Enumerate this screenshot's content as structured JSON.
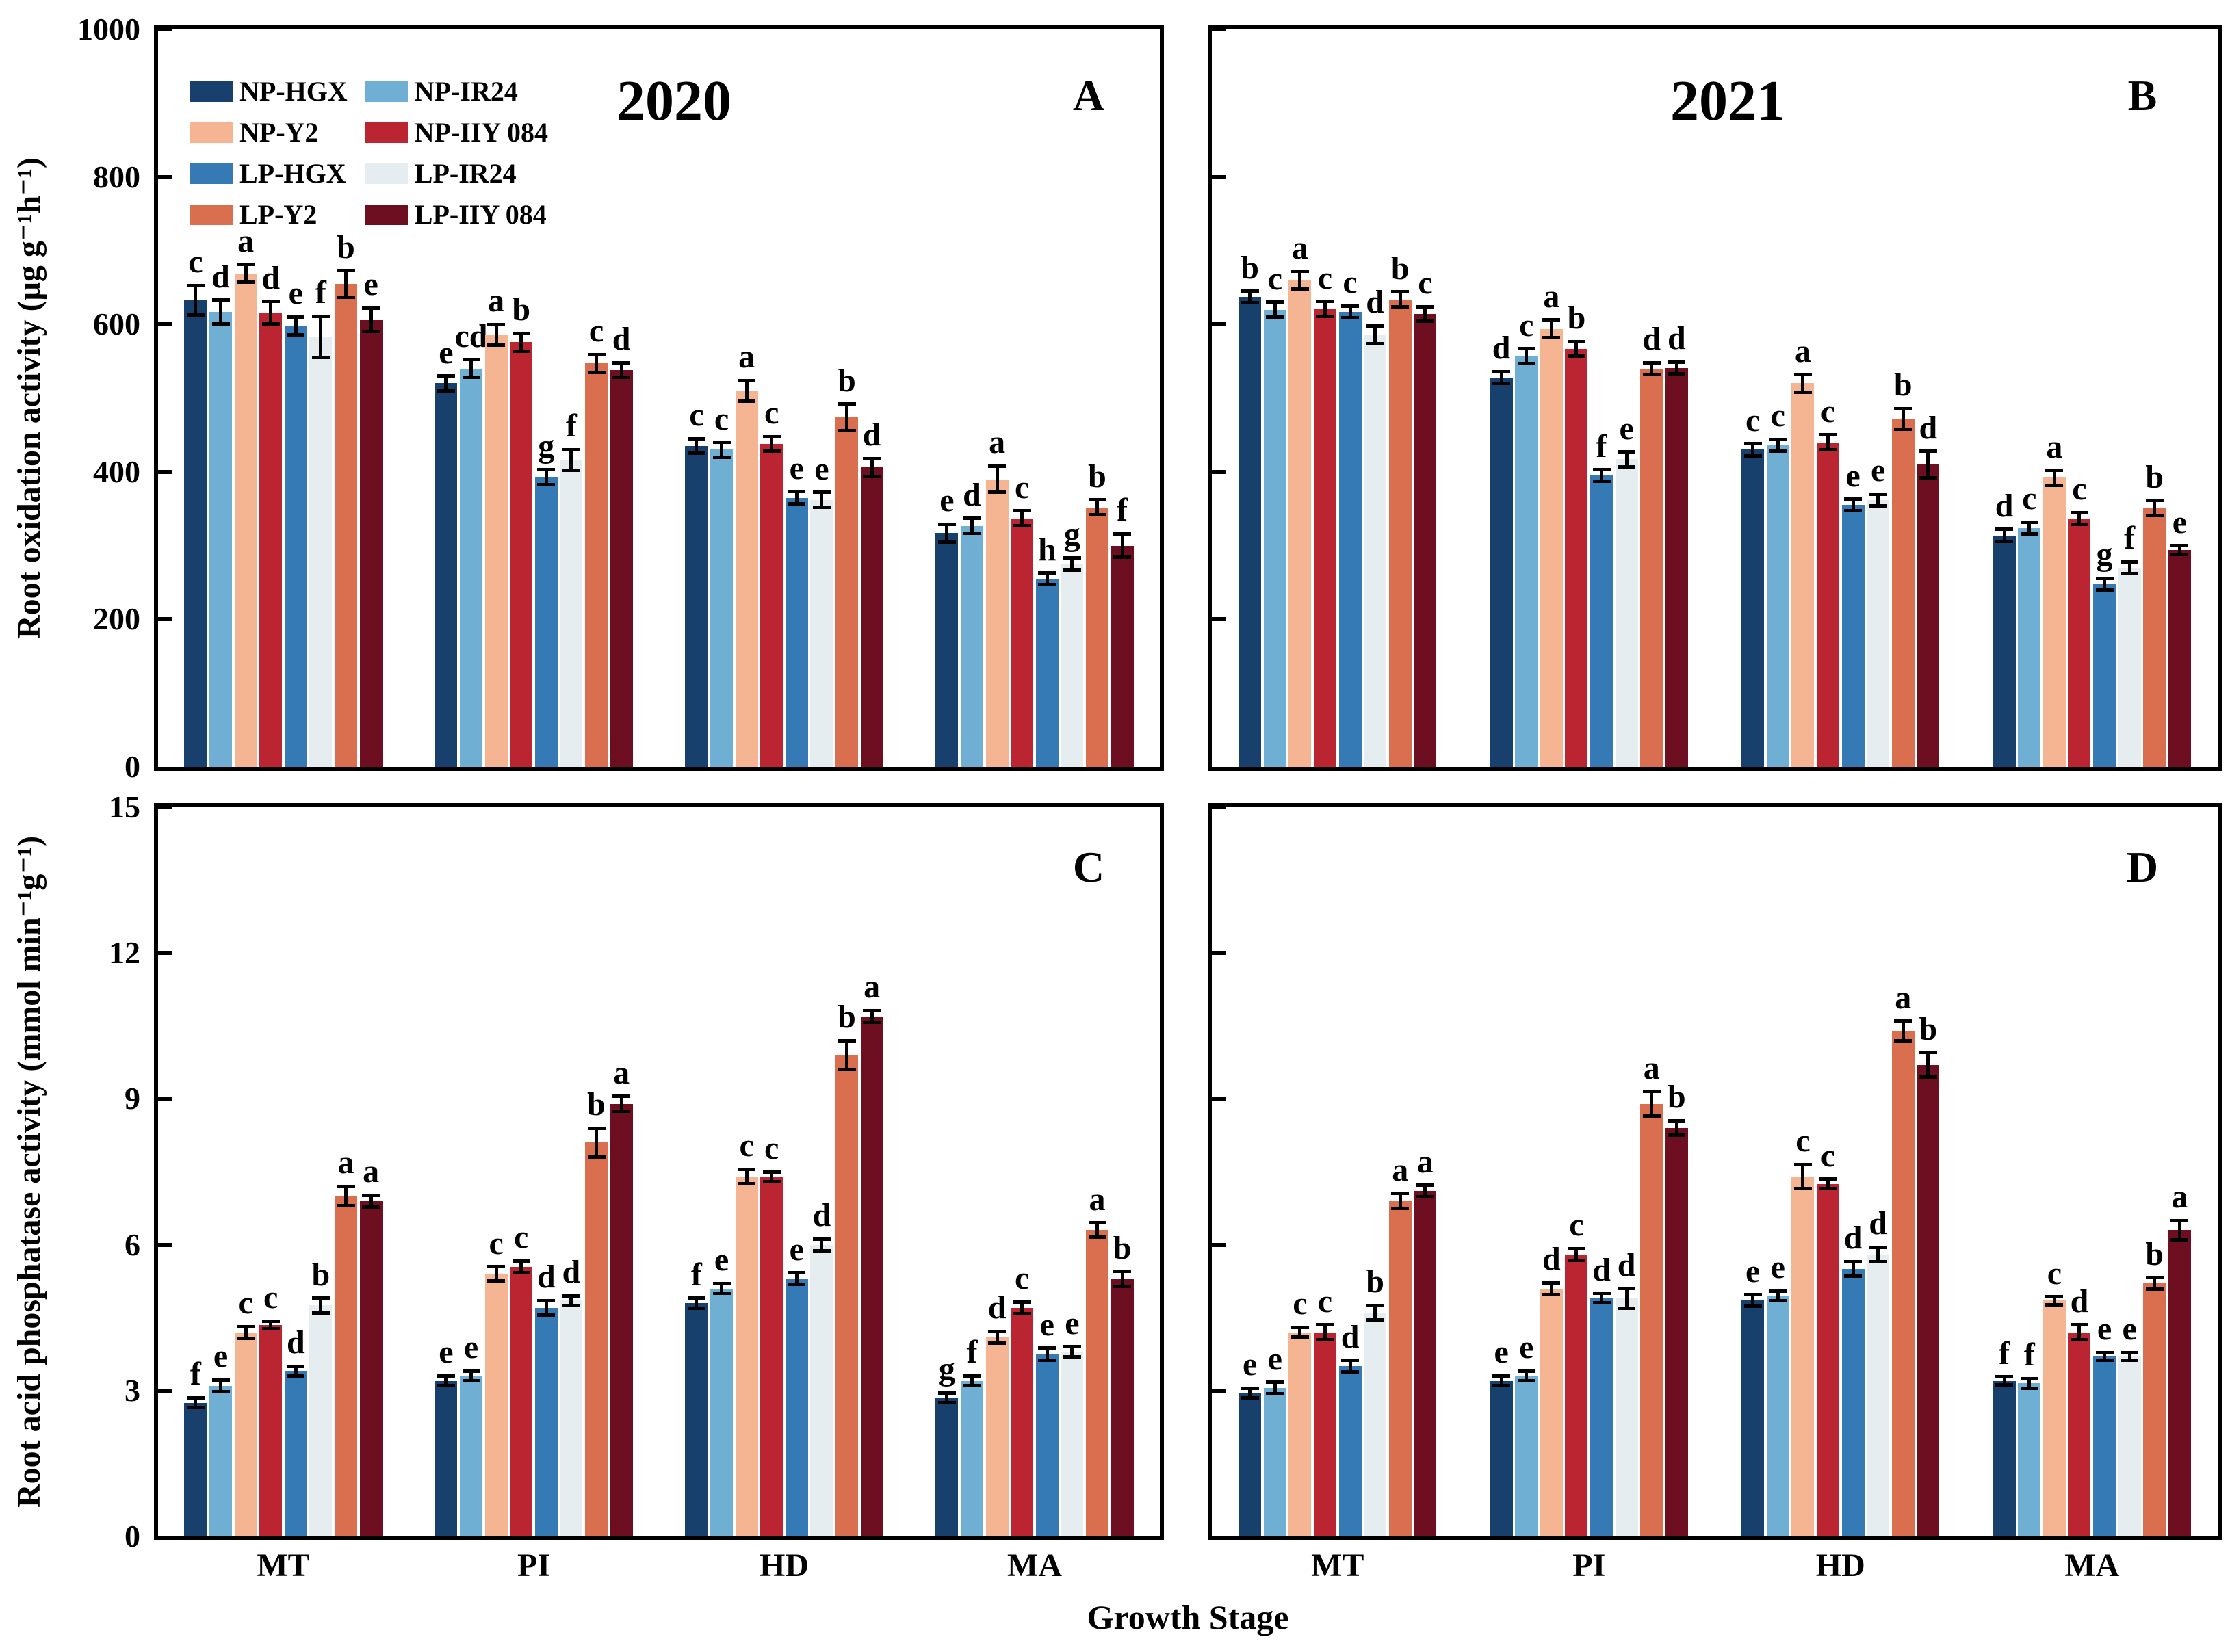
{
  "figure_title": "",
  "xlabel": "Growth Stage",
  "legend": {
    "items": [
      {
        "label": "NP-HGX",
        "color": "#17406d"
      },
      {
        "label": "NP-Y2",
        "color": "#f5b593"
      },
      {
        "label": "LP-HGX",
        "color": "#3579b5"
      },
      {
        "label": "LP-Y2",
        "color": "#d96f4f"
      },
      {
        "label": "NP-IR24",
        "color": "#6fafd4"
      },
      {
        "label": "NP-IIY 084",
        "color": "#bb2431"
      },
      {
        "label": "LP-IR24",
        "color": "#e6edf1"
      },
      {
        "label": "LP-IIY 084",
        "color": "#6d0f21"
      }
    ]
  },
  "chart_data": {
    "type": "bar",
    "categories": [
      "MT",
      "PI",
      "HD",
      "MA"
    ],
    "xlabel": "Growth Stage",
    "ylabel_top": "Root oxidation activity (μg g⁻¹h⁻¹)",
    "ylabel_bottom": "Root acid phosphatase activity (mmol min⁻¹g⁻¹)",
    "grid": false,
    "legend_position": "upper-left of panel A",
    "series_order": [
      "NP-HGX",
      "NP-IR24",
      "NP-Y2",
      "NP-IIY 084",
      "LP-HGX",
      "LP-IR24",
      "LP-Y2",
      "LP-IIY 084"
    ],
    "series_colors": {
      "NP-HGX": "#17406d",
      "NP-IR24": "#6fafd4",
      "NP-Y2": "#f5b593",
      "NP-IIY 084": "#bb2431",
      "LP-HGX": "#3579b5",
      "LP-IR24": "#e6edf1",
      "LP-Y2": "#d96f4f",
      "LP-IIY 084": "#6d0f21"
    },
    "panels": [
      {
        "id": "A",
        "year": "2020",
        "row": "top",
        "labels_y": true,
        "ylim": [
          0,
          1000
        ],
        "yticks": [
          0,
          200,
          400,
          600,
          800,
          1000
        ],
        "series": [
          {
            "name": "NP-HGX",
            "values": [
              633,
              520,
              435,
              317
            ],
            "errors": [
              20,
              10,
              10,
              12
            ],
            "letters": [
              "c",
              "e",
              "c",
              "e"
            ]
          },
          {
            "name": "NP-IR24",
            "values": [
              617,
              540,
              430,
              327
            ],
            "errors": [
              16,
              12,
              10,
              10
            ],
            "letters": [
              "d",
              "cd",
              "c",
              "d"
            ]
          },
          {
            "name": "NP-Y2",
            "values": [
              669,
              586,
              510,
              390
            ],
            "errors": [
              12,
              14,
              14,
              18
            ],
            "letters": [
              "a",
              "a",
              "a",
              "a"
            ]
          },
          {
            "name": "NP-IIY 084",
            "values": [
              616,
              576,
              438,
              337
            ],
            "errors": [
              15,
              12,
              10,
              10
            ],
            "letters": [
              "d",
              "b",
              "c",
              "c"
            ]
          },
          {
            "name": "LP-HGX",
            "values": [
              598,
              393,
              365,
              255
            ],
            "errors": [
              12,
              10,
              8,
              8
            ],
            "letters": [
              "e",
              "g",
              "e",
              "h"
            ]
          },
          {
            "name": "LP-IR24",
            "values": [
              583,
              416,
              362,
              275
            ],
            "errors": [
              28,
              14,
              10,
              8
            ],
            "letters": [
              "f",
              "f",
              "e",
              "g"
            ]
          },
          {
            "name": "LP-Y2",
            "values": [
              655,
              547,
              474,
              352
            ],
            "errors": [
              18,
              12,
              18,
              10
            ],
            "letters": [
              "b",
              "c",
              "b",
              "b"
            ]
          },
          {
            "name": "LP-IIY 084",
            "values": [
              606,
              538,
              406,
              300
            ],
            "errors": [
              16,
              10,
              12,
              16
            ],
            "letters": [
              "e",
              "d",
              "d",
              "f"
            ]
          }
        ]
      },
      {
        "id": "B",
        "year": "2021",
        "row": "top",
        "labels_y": false,
        "ylim": [
          0,
          1000
        ],
        "yticks": [
          0,
          200,
          400,
          600,
          800,
          1000
        ],
        "series": [
          {
            "name": "NP-HGX",
            "values": [
              637,
              528,
              430,
              314
            ],
            "errors": [
              8,
              8,
              8,
              8
            ],
            "letters": [
              "b",
              "d",
              "c",
              "d"
            ]
          },
          {
            "name": "NP-IR24",
            "values": [
              620,
              557,
              436,
              324
            ],
            "errors": [
              10,
              10,
              8,
              8
            ],
            "letters": [
              "c",
              "c",
              "c",
              "c"
            ]
          },
          {
            "name": "NP-Y2",
            "values": [
              660,
              594,
              520,
              392
            ],
            "errors": [
              12,
              12,
              12,
              10
            ],
            "letters": [
              "a",
              "a",
              "a",
              "a"
            ]
          },
          {
            "name": "NP-IIY 084",
            "values": [
              621,
              567,
              440,
              337
            ],
            "errors": [
              10,
              10,
              10,
              8
            ],
            "letters": [
              "c",
              "b",
              "c",
              "c"
            ]
          },
          {
            "name": "LP-HGX",
            "values": [
              617,
              395,
              355,
              248
            ],
            "errors": [
              8,
              8,
              8,
              8
            ],
            "letters": [
              "c",
              "f",
              "e",
              "g"
            ]
          },
          {
            "name": "LP-IR24",
            "values": [
              586,
              417,
              362,
              270
            ],
            "errors": [
              12,
              10,
              8,
              8
            ],
            "letters": [
              "d",
              "e",
              "e",
              "f"
            ]
          },
          {
            "name": "LP-Y2",
            "values": [
              634,
              540,
              472,
              351
            ],
            "errors": [
              10,
              8,
              14,
              10
            ],
            "letters": [
              "b",
              "d",
              "b",
              "b"
            ]
          },
          {
            "name": "LP-IIY 084",
            "values": [
              614,
              541,
              410,
              294
            ],
            "errors": [
              10,
              8,
              18,
              6
            ],
            "letters": [
              "c",
              "d",
              "d",
              "e"
            ]
          }
        ]
      },
      {
        "id": "C",
        "row": "bot",
        "labels_y": true,
        "ylim": [
          0,
          15
        ],
        "yticks": [
          0,
          3,
          6,
          9,
          12,
          15
        ],
        "series": [
          {
            "name": "NP-HGX",
            "values": [
              2.75,
              3.2,
              4.8,
              2.85
            ],
            "errors": [
              0.1,
              0.1,
              0.1,
              0.1
            ],
            "letters": [
              "f",
              "e",
              "f",
              "g"
            ]
          },
          {
            "name": "NP-IR24",
            "values": [
              3.1,
              3.3,
              5.1,
              3.2
            ],
            "errors": [
              0.12,
              0.1,
              0.1,
              0.1
            ],
            "letters": [
              "e",
              "e",
              "e",
              "f"
            ]
          },
          {
            "name": "NP-Y2",
            "values": [
              4.2,
              5.4,
              7.4,
              4.1
            ],
            "errors": [
              0.12,
              0.15,
              0.15,
              0.12
            ],
            "letters": [
              "c",
              "c",
              "c",
              "d"
            ]
          },
          {
            "name": "NP-IIY 084",
            "values": [
              4.35,
              5.55,
              7.4,
              4.7
            ],
            "errors": [
              0.08,
              0.12,
              0.1,
              0.12
            ],
            "letters": [
              "c",
              "c",
              "c",
              "c"
            ]
          },
          {
            "name": "LP-HGX",
            "values": [
              3.4,
              4.7,
              5.3,
              3.75
            ],
            "errors": [
              0.1,
              0.15,
              0.12,
              0.12
            ],
            "letters": [
              "d",
              "d",
              "e",
              "e"
            ]
          },
          {
            "name": "LP-IR24",
            "values": [
              4.75,
              4.85,
              6.0,
              3.8
            ],
            "errors": [
              0.15,
              0.1,
              0.12,
              0.1
            ],
            "letters": [
              "b",
              "d",
              "d",
              "e"
            ]
          },
          {
            "name": "LP-Y2",
            "values": [
              7.0,
              8.1,
              9.9,
              6.3
            ],
            "errors": [
              0.2,
              0.3,
              0.3,
              0.15
            ],
            "letters": [
              "a",
              "b",
              "b",
              "a"
            ]
          },
          {
            "name": "LP-IIY 084",
            "values": [
              6.9,
              8.9,
              10.7,
              5.3
            ],
            "errors": [
              0.12,
              0.15,
              0.12,
              0.15
            ],
            "letters": [
              "a",
              "a",
              "a",
              "b"
            ]
          }
        ]
      },
      {
        "id": "D",
        "row": "bot",
        "labels_y": false,
        "ylim": [
          0,
          15
        ],
        "yticks": [
          0,
          3,
          6,
          9,
          12,
          15
        ],
        "series": [
          {
            "name": "NP-HGX",
            "values": [
              2.95,
              3.2,
              4.85,
              3.2
            ],
            "errors": [
              0.1,
              0.1,
              0.12,
              0.08
            ],
            "letters": [
              "e",
              "e",
              "e",
              "f"
            ]
          },
          {
            "name": "NP-IR24",
            "values": [
              3.05,
              3.3,
              4.95,
              3.15
            ],
            "errors": [
              0.12,
              0.1,
              0.1,
              0.1
            ],
            "letters": [
              "e",
              "e",
              "e",
              "f"
            ]
          },
          {
            "name": "NP-Y2",
            "values": [
              4.2,
              5.1,
              7.4,
              4.85
            ],
            "errors": [
              0.1,
              0.12,
              0.25,
              0.08
            ],
            "letters": [
              "c",
              "d",
              "c",
              "c"
            ]
          },
          {
            "name": "NP-IIY 084",
            "values": [
              4.2,
              5.8,
              7.25,
              4.2
            ],
            "errors": [
              0.15,
              0.12,
              0.1,
              0.15
            ],
            "letters": [
              "c",
              "c",
              "c",
              "d"
            ]
          },
          {
            "name": "LP-HGX",
            "values": [
              3.5,
              4.9,
              5.5,
              3.7
            ],
            "errors": [
              0.12,
              0.1,
              0.15,
              0.08
            ],
            "letters": [
              "d",
              "d",
              "d",
              "e"
            ]
          },
          {
            "name": "LP-IR24",
            "values": [
              4.6,
              4.9,
              5.8,
              3.7
            ],
            "errors": [
              0.15,
              0.2,
              0.15,
              0.08
            ],
            "letters": [
              "b",
              "d",
              "d",
              "e"
            ]
          },
          {
            "name": "LP-Y2",
            "values": [
              6.9,
              8.9,
              10.4,
              5.2
            ],
            "errors": [
              0.15,
              0.25,
              0.2,
              0.12
            ],
            "letters": [
              "a",
              "a",
              "a",
              "b"
            ]
          },
          {
            "name": "LP-IIY 084",
            "values": [
              7.1,
              8.4,
              9.7,
              6.3
            ],
            "errors": [
              0.12,
              0.15,
              0.25,
              0.2
            ],
            "letters": [
              "a",
              "b",
              "b",
              "a"
            ]
          }
        ]
      }
    ]
  }
}
